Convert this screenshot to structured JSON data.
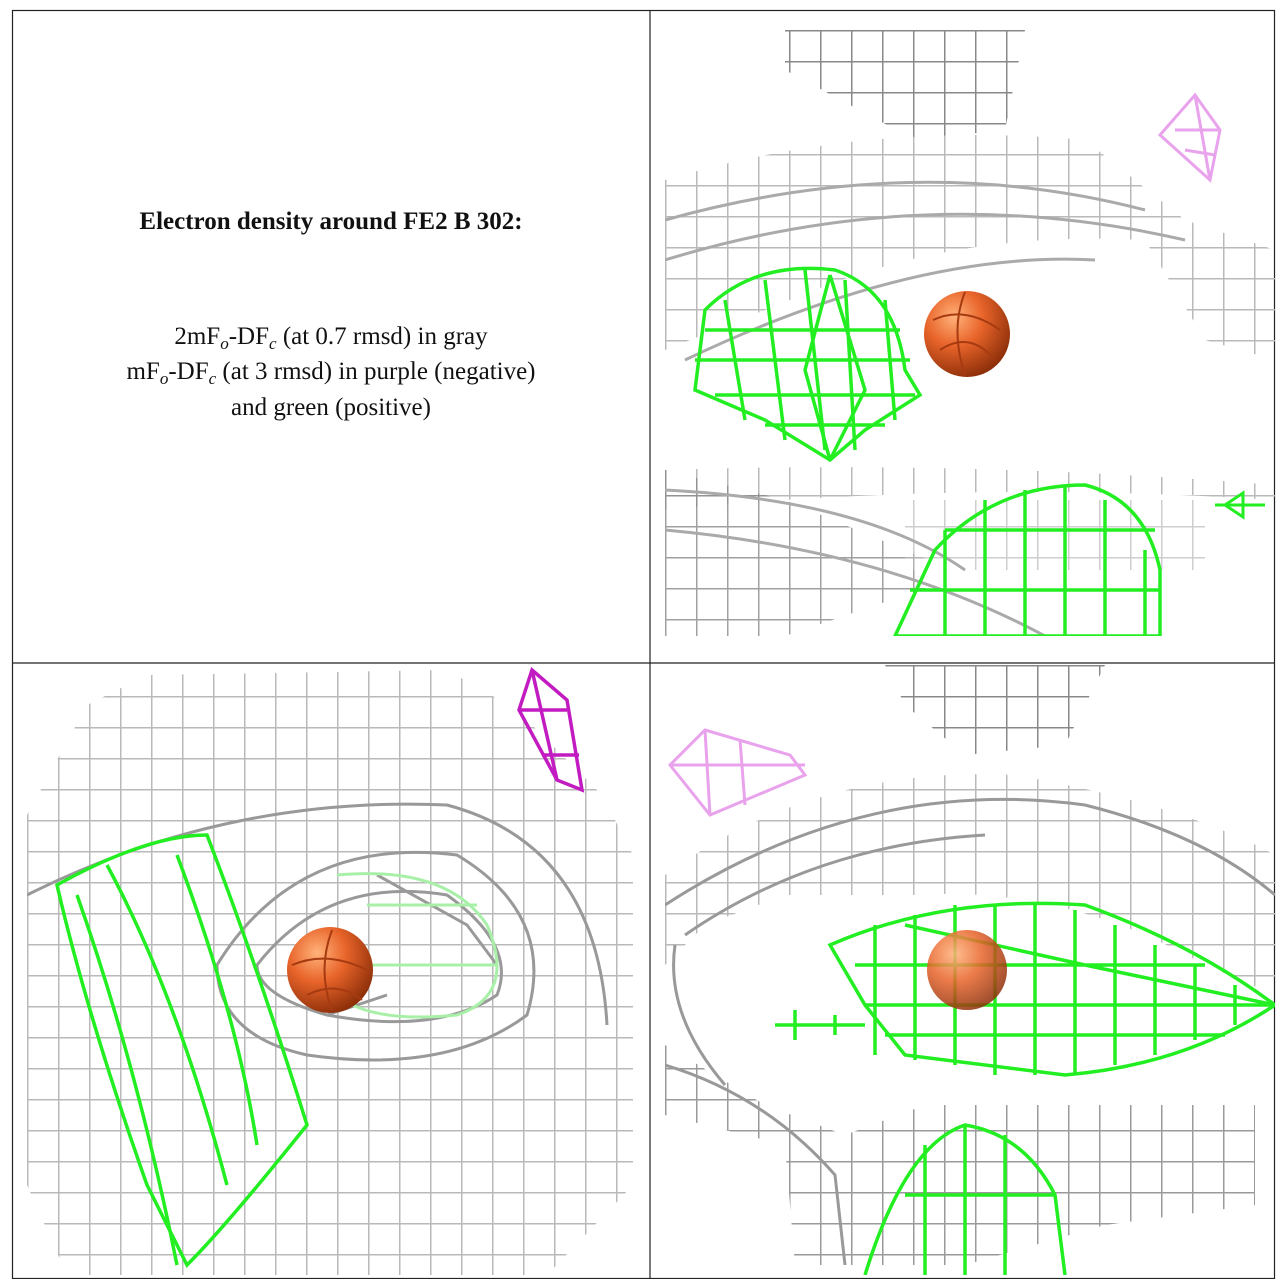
{
  "heading": "Electron density around FE2 B 302:",
  "legend": [
    {
      "parts": [
        "2mF",
        "o",
        "-DF",
        "c",
        " (at 0.7 rmsd) in gray"
      ]
    },
    {
      "parts": [
        "mF",
        "o",
        "-DF",
        "c",
        " (at 3 rmsd) in purple (negative)"
      ]
    },
    {
      "parts": [
        "and green (positive)"
      ]
    }
  ]
}
